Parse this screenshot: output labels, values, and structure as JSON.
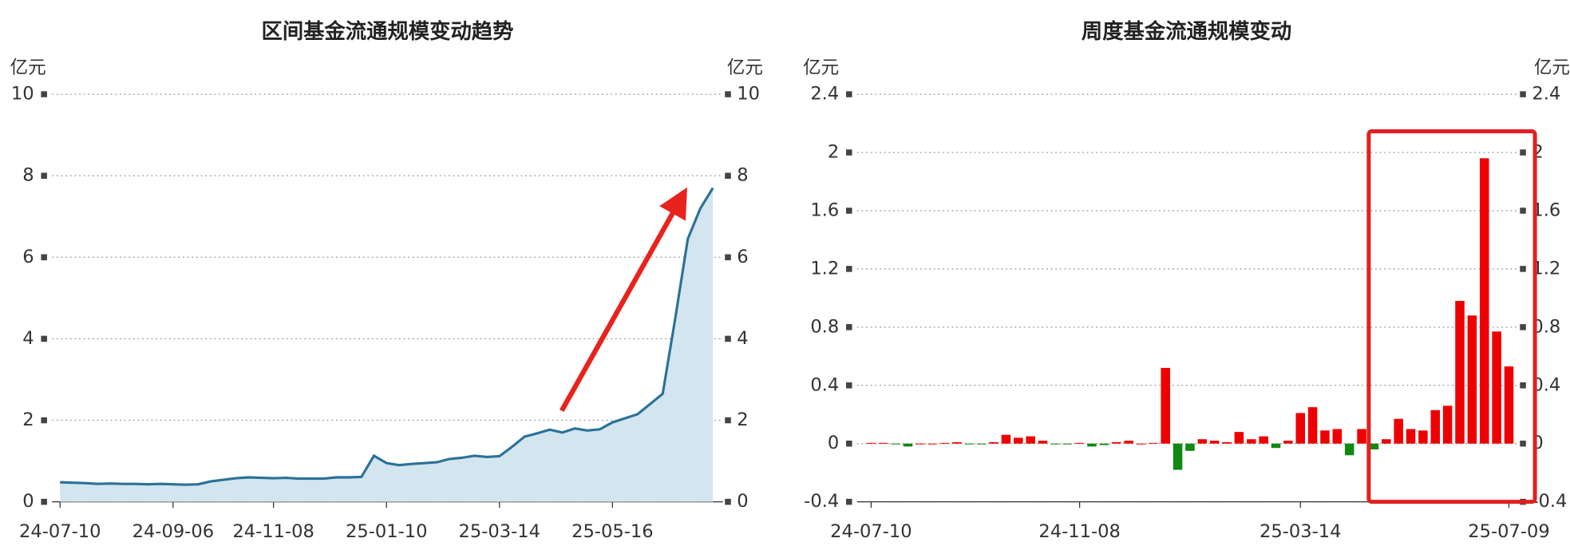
{
  "chart_data": [
    {
      "type": "line",
      "title": "区间基金流通规模变动趋势",
      "y_label": "亿元",
      "y2_label": "亿元",
      "categories": [
        "24-07-10",
        null,
        null,
        null,
        null,
        null,
        null,
        null,
        null,
        "24-09-06",
        null,
        null,
        null,
        null,
        null,
        null,
        null,
        "24-11-08",
        null,
        null,
        null,
        null,
        null,
        null,
        null,
        null,
        "25-01-10",
        null,
        null,
        null,
        null,
        null,
        null,
        null,
        null,
        "25-03-14",
        null,
        null,
        null,
        null,
        null,
        null,
        null,
        null,
        "25-05-16",
        null,
        null,
        null,
        null,
        null,
        null,
        null,
        null
      ],
      "series": [
        {
          "color": "#2b7197",
          "fill": "#d3e5ef",
          "values": [
            0.48,
            0.47,
            0.46,
            0.44,
            0.45,
            0.44,
            0.44,
            0.43,
            0.44,
            0.43,
            0.42,
            0.43,
            0.5,
            0.54,
            0.58,
            0.6,
            0.59,
            0.58,
            0.59,
            0.57,
            0.57,
            0.57,
            0.6,
            0.6,
            0.61,
            1.13,
            0.95,
            0.9,
            0.93,
            0.95,
            0.97,
            1.05,
            1.08,
            1.13,
            1.1,
            1.12,
            1.35,
            1.6,
            1.68,
            1.77,
            1.7,
            1.8,
            1.75,
            1.78,
            1.95,
            2.05,
            2.15,
            2.4,
            2.65,
            4.5,
            6.45,
            7.2,
            7.7
          ]
        }
      ],
      "ylim": [
        0,
        10
      ],
      "yticks": [
        0,
        2,
        4,
        6,
        8,
        10
      ],
      "y2lim": [
        0,
        10
      ],
      "y2ticks": [
        0,
        2,
        4,
        6,
        8,
        10
      ],
      "grid": true
    },
    {
      "type": "bar",
      "title": "周度基金流通规模变动",
      "y_label": "亿元",
      "y2_label": "亿元",
      "categories": [
        "24-07-10",
        null,
        null,
        null,
        null,
        null,
        null,
        null,
        null,
        null,
        null,
        null,
        null,
        null,
        null,
        null,
        null,
        "24-11-08",
        null,
        null,
        null,
        null,
        null,
        null,
        null,
        null,
        null,
        null,
        null,
        null,
        null,
        null,
        null,
        null,
        null,
        "25-03-14",
        null,
        null,
        null,
        null,
        null,
        null,
        null,
        null,
        null,
        null,
        null,
        null,
        null,
        null,
        null,
        null,
        "25-07-09"
      ],
      "values": [
        0.005,
        0.005,
        -0.005,
        -0.02,
        0,
        0,
        0.005,
        0.01,
        -0.005,
        -0.005,
        0.01,
        0.06,
        0.04,
        0.05,
        0.02,
        -0.005,
        -0.005,
        0.005,
        -0.02,
        -0.01,
        0.01,
        0.02,
        0,
        0.005,
        0.52,
        -0.18,
        -0.05,
        0.03,
        0.02,
        0.01,
        0.08,
        0.03,
        0.05,
        -0.03,
        0.02,
        0.21,
        0.25,
        0.09,
        0.1,
        -0.08,
        0.1,
        -0.04,
        0.03,
        0.17,
        0.1,
        0.09,
        0.23,
        0.26,
        0.98,
        0.88,
        1.96,
        0.77,
        0.53
      ],
      "positive_color": "#ee0000",
      "negative_color": "#118811",
      "ylim": [
        -0.4,
        2.4
      ],
      "yticks": [
        -0.4,
        0,
        0.4,
        0.8,
        1.2,
        1.6,
        2,
        2.4
      ],
      "y2lim": [
        -0.4,
        2.4
      ],
      "y2ticks": [
        -0.4,
        0,
        0.4,
        0.8,
        1.2,
        1.6,
        2,
        2.4
      ],
      "grid": true
    }
  ]
}
